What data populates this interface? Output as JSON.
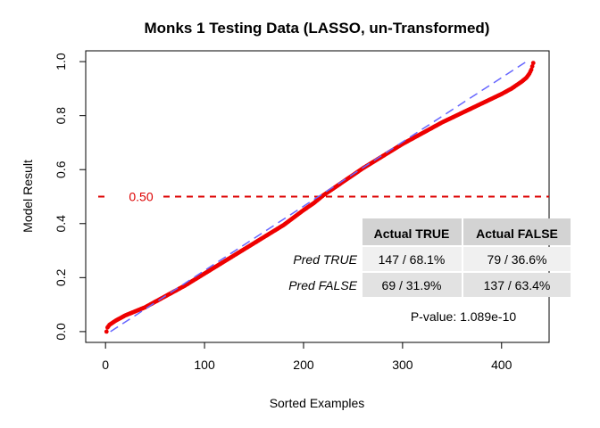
{
  "chart_data": {
    "type": "scatter",
    "title": "Monks 1 Testing Data (LASSO, un-Transformed)",
    "xlabel": "Sorted Examples",
    "ylabel": "Model Result",
    "xlim": [
      -20,
      448
    ],
    "ylim": [
      -0.04,
      1.04
    ],
    "xticks": [
      0,
      100,
      200,
      300,
      400
    ],
    "xtick_labels": [
      "0",
      "100",
      "200",
      "300",
      "400"
    ],
    "yticks": [
      0,
      0.2,
      0.4,
      0.6,
      0.8,
      1.0
    ],
    "ytick_labels": [
      "0.0",
      "0.2",
      "0.4",
      "0.6",
      "0.8",
      "1.0"
    ],
    "grid": false,
    "n_points": 432,
    "series": [
      {
        "color": "#ee0000",
        "x": [
          1,
          2,
          4,
          6,
          10,
          15,
          20,
          30,
          40,
          60,
          80,
          100,
          120,
          140,
          160,
          180,
          200,
          210,
          220,
          240,
          260,
          280,
          300,
          320,
          340,
          360,
          380,
          400,
          410,
          420,
          425,
          428,
          430,
          432
        ],
        "y": [
          0.0,
          0.015,
          0.025,
          0.03,
          0.04,
          0.05,
          0.06,
          0.075,
          0.09,
          0.13,
          0.17,
          0.215,
          0.26,
          0.305,
          0.35,
          0.395,
          0.45,
          0.475,
          0.505,
          0.555,
          0.605,
          0.65,
          0.695,
          0.735,
          0.775,
          0.81,
          0.845,
          0.88,
          0.9,
          0.925,
          0.94,
          0.955,
          0.97,
          0.995
        ]
      }
    ],
    "fit_line": {
      "color": "#6666ff",
      "x": [
        5,
        425
      ],
      "y": [
        0.0,
        1.0
      ]
    },
    "reference_line": {
      "y": 0.5,
      "label": "0.50",
      "color": "#dd0000"
    },
    "confusion_table": {
      "columns": [
        "Actual TRUE",
        "Actual FALSE"
      ],
      "rows": [
        {
          "label": "Pred TRUE",
          "values": [
            "147 / 68.1%",
            "79 / 36.6%"
          ]
        },
        {
          "label": "Pred FALSE",
          "values": [
            "69 / 31.9%",
            "137 / 63.4%"
          ]
        }
      ]
    },
    "p_value_text": "P-value: 1.089e-10"
  }
}
